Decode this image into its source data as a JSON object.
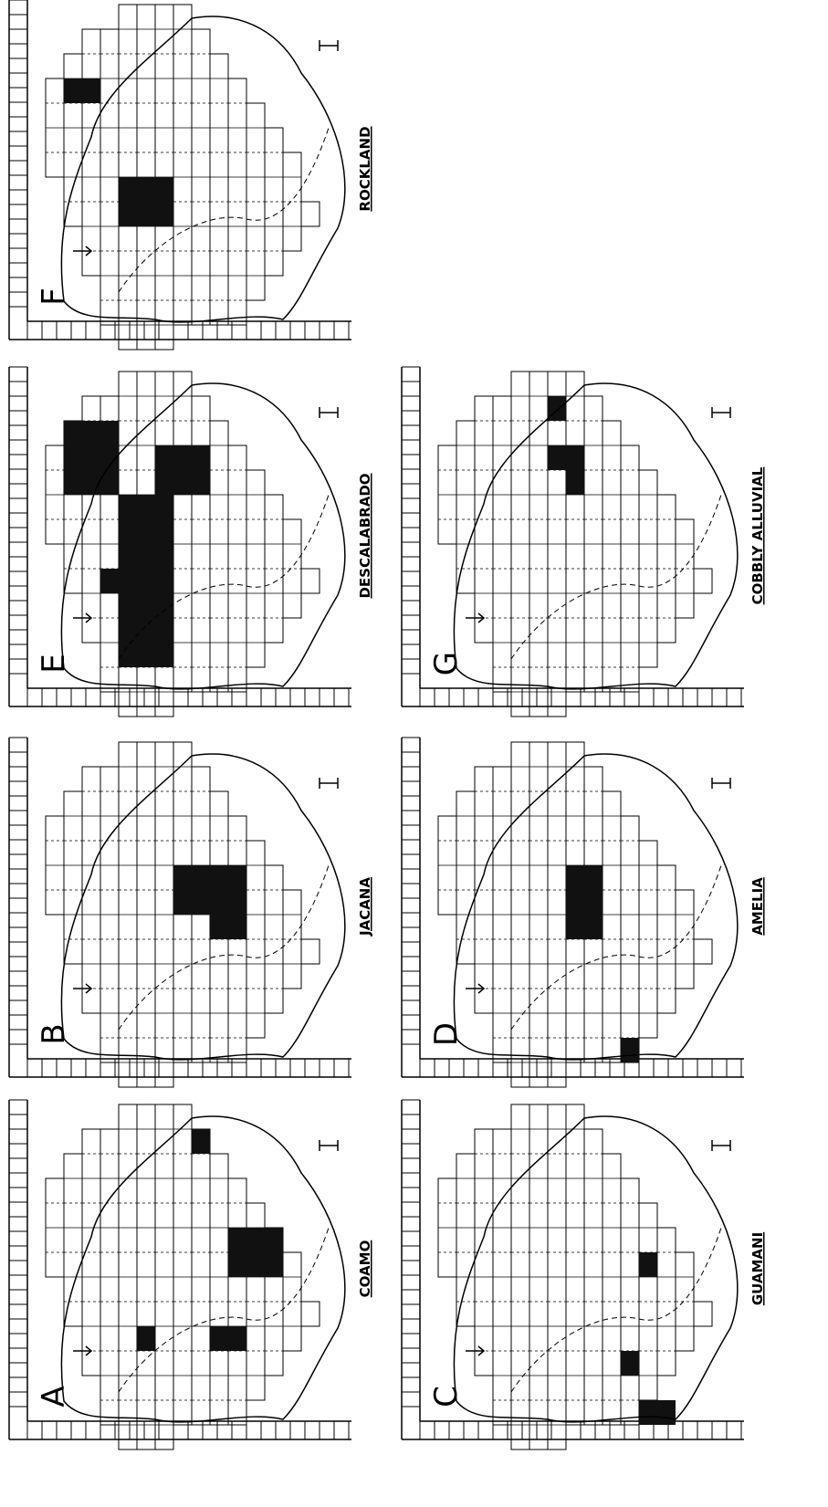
{
  "panels": [
    {
      "letter": "F",
      "label": "ROCKLAND"
    },
    {
      "letter": "E",
      "label": "DESCALABRADO"
    },
    {
      "letter": "B",
      "label": "JACANA"
    },
    {
      "letter": "A",
      "label": "COAMO"
    },
    {
      "letter": "G",
      "label": "COBBLY ALLUVIAL"
    },
    {
      "letter": "D",
      "label": "AMELIA"
    },
    {
      "letter": "C",
      "label": "GUAMANI"
    }
  ]
}
